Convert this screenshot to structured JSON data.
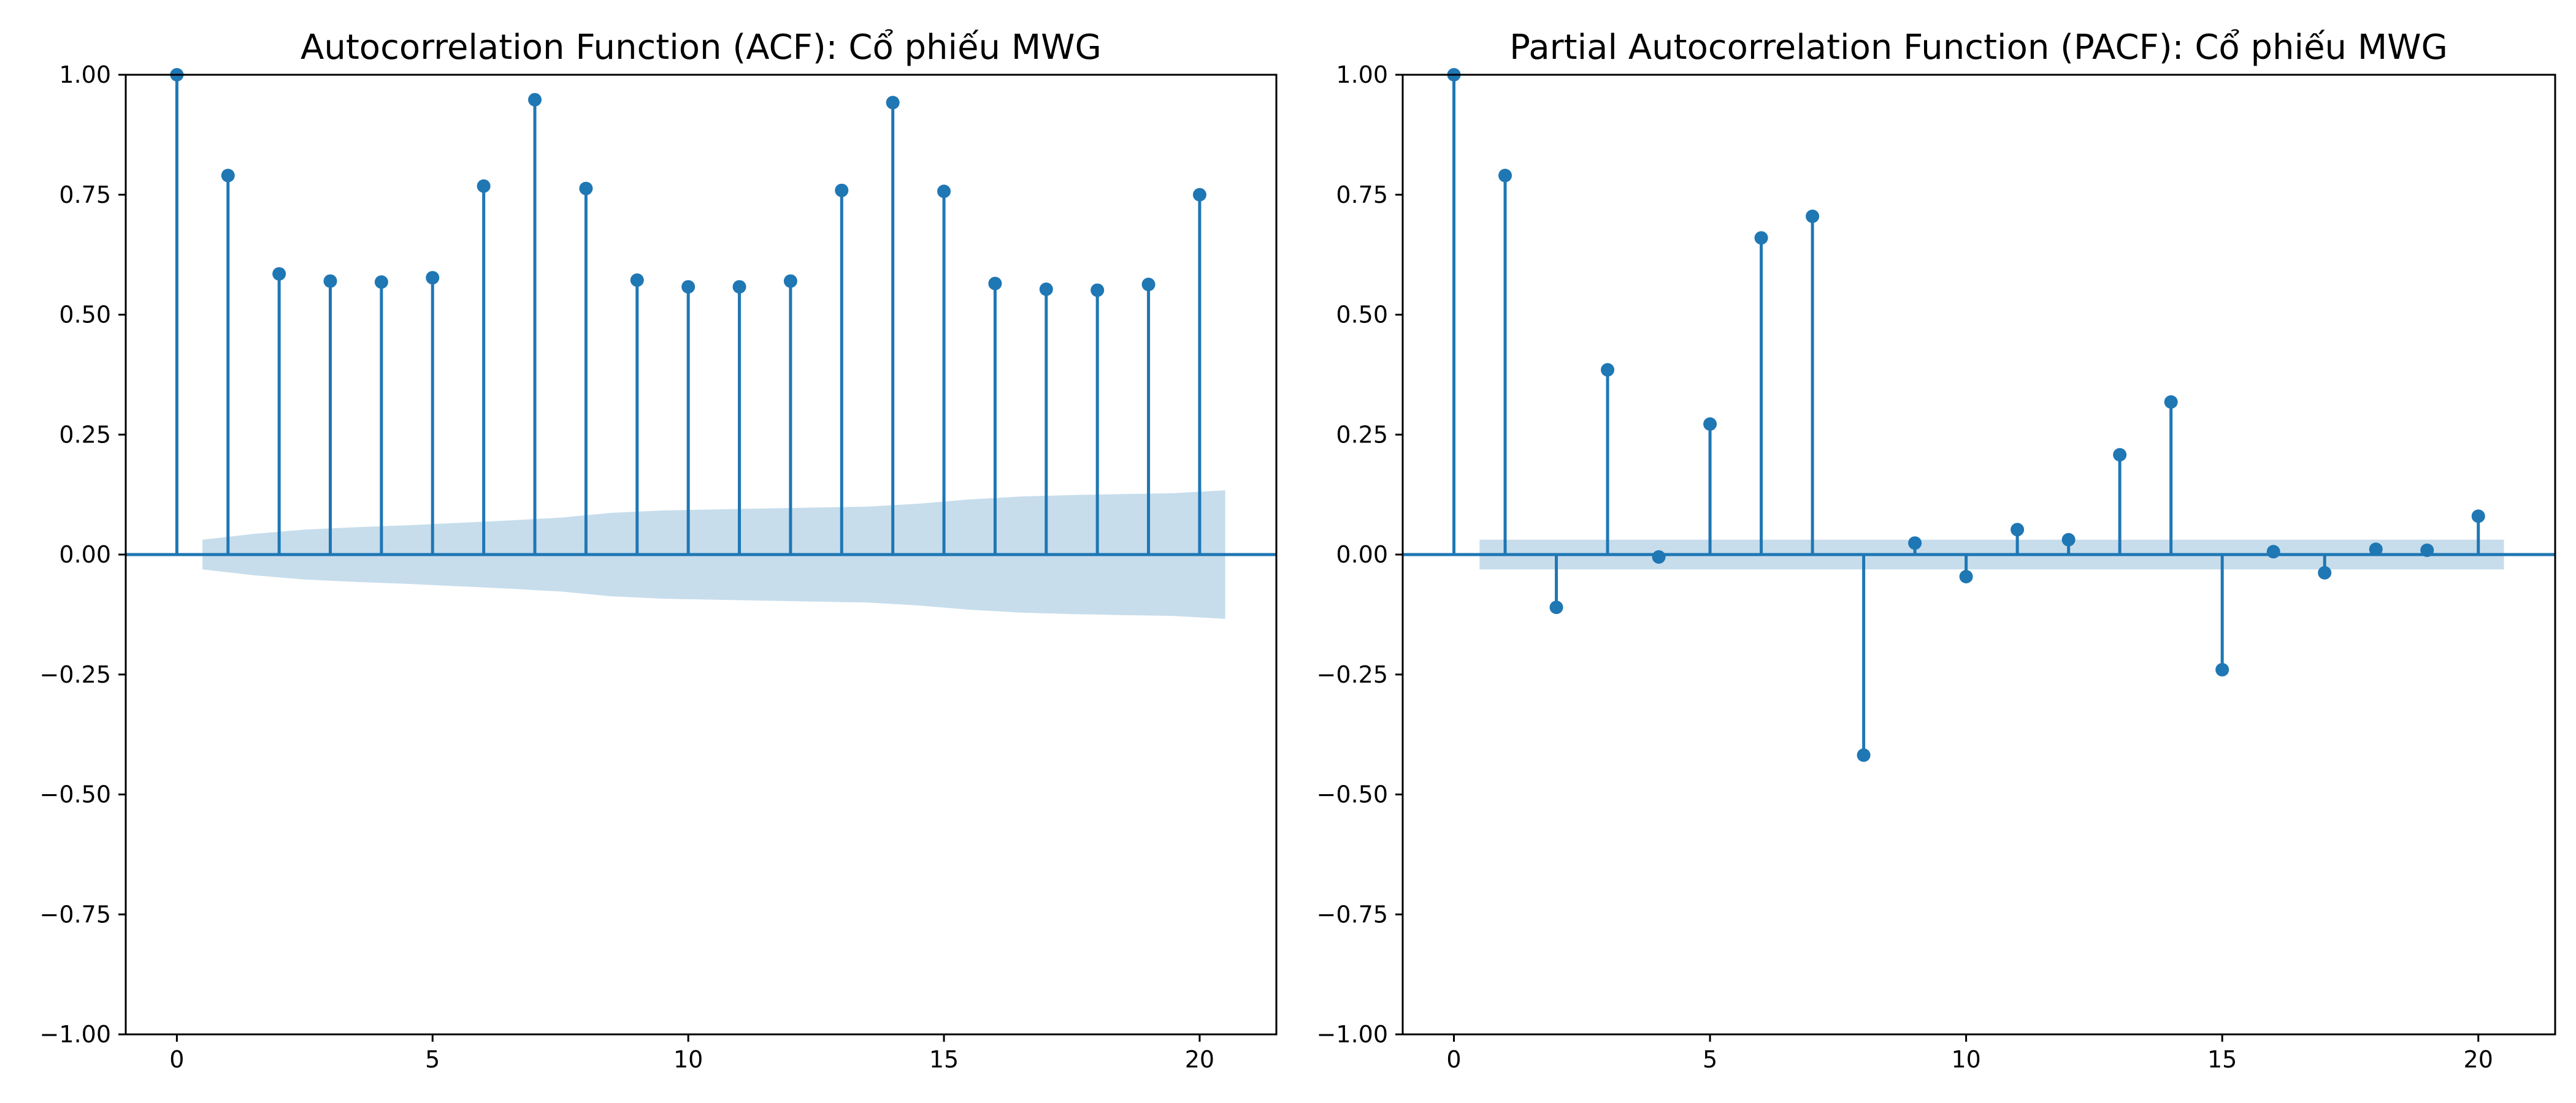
{
  "colors": {
    "stem": "#1f77b4",
    "confidence_band": "#1f77b4",
    "axes": "#000000",
    "background": "#ffffff"
  },
  "chart_data": [
    {
      "type": "stem",
      "title": "Autocorrelation Function (ACF): Cổ phiếu MWG",
      "xlabel": "",
      "ylabel": "",
      "xlim": [
        -1,
        21.5
      ],
      "ylim": [
        -1.0,
        1.0
      ],
      "x_ticks": [
        0,
        5,
        10,
        15,
        20
      ],
      "y_ticks": [
        -1.0,
        -0.75,
        -0.5,
        -0.25,
        0.0,
        0.25,
        0.5,
        0.75,
        1.0
      ],
      "y_tick_labels": [
        "−1.00",
        "−0.75",
        "−0.50",
        "−0.25",
        "0.00",
        "0.25",
        "0.50",
        "0.75",
        "1.00"
      ],
      "x_tick_labels": [
        "0",
        "5",
        "10",
        "15",
        "20"
      ],
      "grid": false,
      "lags": [
        0,
        1,
        2,
        3,
        4,
        5,
        6,
        7,
        8,
        9,
        10,
        11,
        12,
        13,
        14,
        15,
        16,
        17,
        18,
        19,
        20
      ],
      "values": [
        1.0,
        0.79,
        0.585,
        0.57,
        0.568,
        0.577,
        0.768,
        0.948,
        0.763,
        0.572,
        0.558,
        0.558,
        0.57,
        0.759,
        0.942,
        0.757,
        0.565,
        0.553,
        0.551,
        0.563,
        0.75
      ],
      "confidence_band": {
        "x_range": [
          0.5,
          20.5
        ],
        "upper": [
          0.031,
          0.043,
          0.052,
          0.057,
          0.061,
          0.066,
          0.071,
          0.077,
          0.087,
          0.092,
          0.094,
          0.096,
          0.098,
          0.1,
          0.106,
          0.115,
          0.121,
          0.124,
          0.126,
          0.128,
          0.134
        ]
      }
    },
    {
      "type": "stem",
      "title": "Partial Autocorrelation Function (PACF): Cổ phiếu MWG",
      "xlabel": "",
      "ylabel": "",
      "xlim": [
        -1,
        21.5
      ],
      "ylim": [
        -1.0,
        1.0
      ],
      "x_ticks": [
        0,
        5,
        10,
        15,
        20
      ],
      "y_ticks": [
        -1.0,
        -0.75,
        -0.5,
        -0.25,
        0.0,
        0.25,
        0.5,
        0.75,
        1.0
      ],
      "y_tick_labels": [
        "−1.00",
        "−0.75",
        "−0.50",
        "−0.25",
        "0.00",
        "0.25",
        "0.50",
        "0.75",
        "1.00"
      ],
      "x_tick_labels": [
        "0",
        "5",
        "10",
        "15",
        "20"
      ],
      "grid": false,
      "lags": [
        0,
        1,
        2,
        3,
        4,
        5,
        6,
        7,
        8,
        9,
        10,
        11,
        12,
        13,
        14,
        15,
        16,
        17,
        18,
        19,
        20
      ],
      "values": [
        1.0,
        0.79,
        -0.11,
        0.385,
        -0.005,
        0.272,
        0.66,
        0.705,
        -0.418,
        0.024,
        -0.046,
        0.052,
        0.031,
        0.208,
        0.318,
        -0.24,
        0.006,
        -0.038,
        0.011,
        0.009,
        0.08
      ],
      "confidence_band": {
        "x_range": [
          0.5,
          20.5
        ],
        "upper": [
          0.031,
          0.031,
          0.031,
          0.031,
          0.031,
          0.031,
          0.031,
          0.031,
          0.031,
          0.031,
          0.031,
          0.031,
          0.031,
          0.031,
          0.031,
          0.031,
          0.031,
          0.031,
          0.031,
          0.031,
          0.031
        ]
      }
    }
  ]
}
